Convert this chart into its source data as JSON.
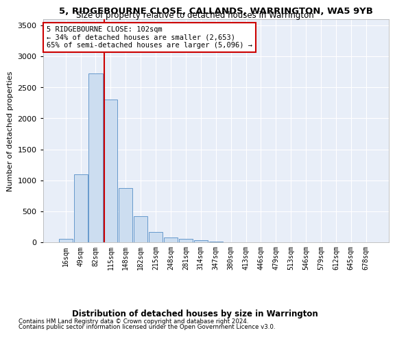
{
  "title": "5, RIDGEBOURNE CLOSE, CALLANDS, WARRINGTON, WA5 9YB",
  "subtitle": "Size of property relative to detached houses in Warrington",
  "xlabel": "Distribution of detached houses by size in Warrington",
  "ylabel": "Number of detached properties",
  "footnote1": "Contains HM Land Registry data © Crown copyright and database right 2024.",
  "footnote2": "Contains public sector information licensed under the Open Government Licence v3.0.",
  "bar_color": "#ccddf0",
  "bar_edge_color": "#6699cc",
  "background_color": "#e8eef8",
  "grid_color": "#ffffff",
  "vline_color": "#cc0000",
  "annotation_text": "5 RIDGEBOURNE CLOSE: 102sqm\n← 34% of detached houses are smaller (2,653)\n65% of semi-detached houses are larger (5,096) →",
  "categories": [
    "16sqm",
    "49sqm",
    "82sqm",
    "115sqm",
    "148sqm",
    "182sqm",
    "215sqm",
    "248sqm",
    "281sqm",
    "314sqm",
    "347sqm",
    "380sqm",
    "413sqm",
    "446sqm",
    "479sqm",
    "513sqm",
    "546sqm",
    "579sqm",
    "612sqm",
    "645sqm",
    "678sqm"
  ],
  "bar_values": [
    50,
    1100,
    2730,
    2300,
    880,
    420,
    170,
    80,
    55,
    30,
    10,
    5,
    0,
    0,
    0,
    0,
    0,
    0,
    0,
    0,
    0
  ],
  "vline_x_index": 2.55,
  "ylim": [
    0,
    3600
  ],
  "yticks": [
    0,
    500,
    1000,
    1500,
    2000,
    2500,
    3000,
    3500
  ]
}
